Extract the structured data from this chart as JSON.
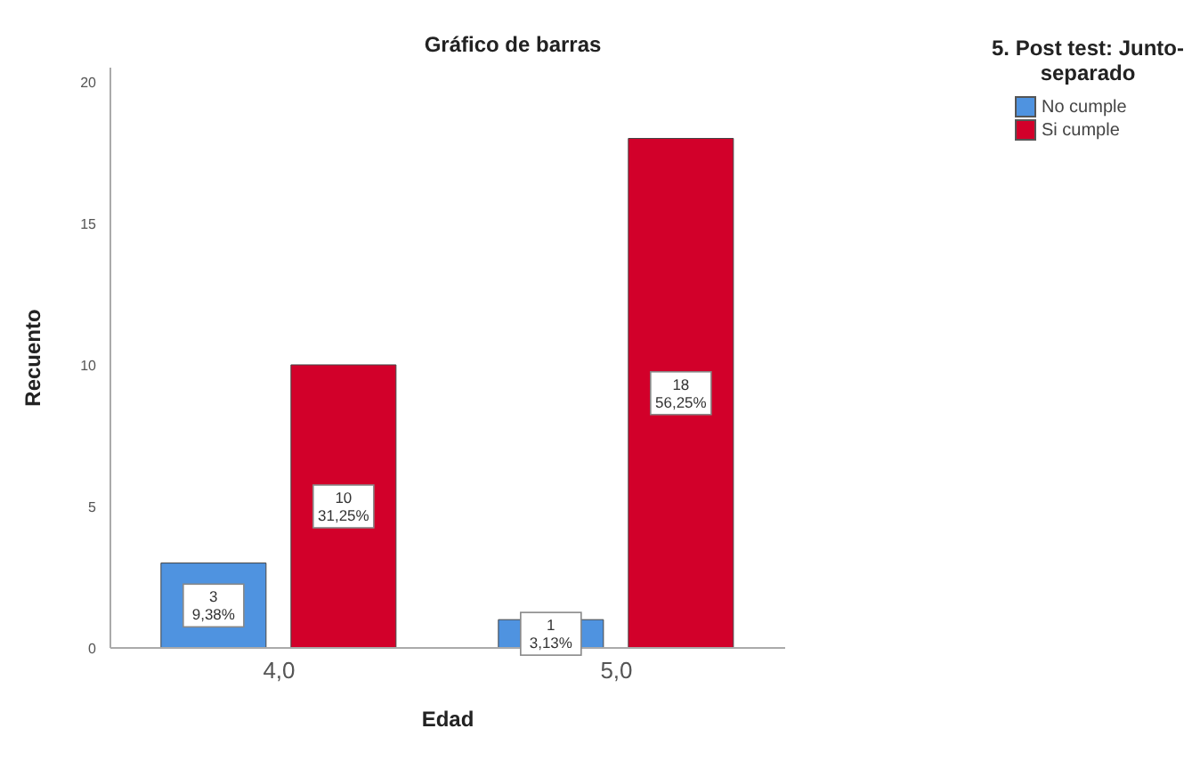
{
  "chart_data": {
    "type": "bar",
    "title": "Gráfico de barras",
    "xlabel": "Edad",
    "ylabel": "Recuento",
    "legend_title": "5. Post test: Junto-separado",
    "categories": [
      "4,0",
      "5,0"
    ],
    "series": [
      {
        "name": "No cumple",
        "color": "#4f93e0",
        "values": [
          3,
          1
        ],
        "value_labels": [
          "3\n9,38%",
          "1\n3,13%"
        ]
      },
      {
        "name": "Si cumple",
        "color": "#d2002a",
        "values": [
          10,
          18
        ],
        "value_labels": [
          "10\n31,25%",
          "18\n56,25%"
        ]
      }
    ],
    "ylim": [
      0,
      20.5
    ],
    "yticks": [
      0,
      5,
      10,
      15,
      20
    ],
    "grid": false,
    "legend": "top right"
  }
}
